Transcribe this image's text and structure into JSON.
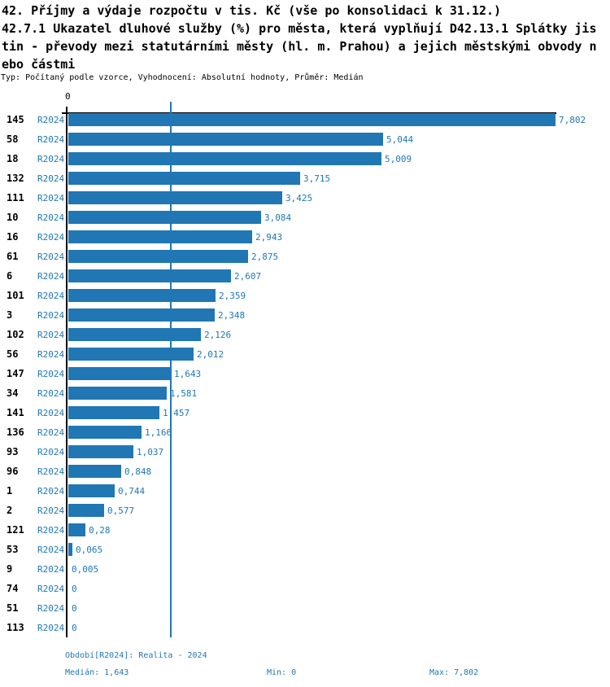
{
  "header": {
    "title_lines": [
      "42. Příjmy a výdaje rozpočtu v tis. Kč (vše po konsolidaci k 31.12.)",
      "42.7.1 Ukazatel dluhové služby (%) pro města, která vyplňují D42.13.1 Splátky jis",
      "tin - převody mezi statutárními městy (hl. m. Prahou) a jejich městskými obvody n",
      "ebo částmi"
    ],
    "meta": "Typ: Počítaný podle vzorce, Vyhodnocení: Absolutní hodnoty, Průměr: Medián"
  },
  "chart_data": {
    "type": "bar",
    "orientation": "horizontal",
    "title": "42. Příjmy a výdaje rozpočtu v tis. Kč (vše po konsolidaci k 31.12.)",
    "subtitle": "42.7.1 Ukazatel dluhové služby (%) pro města, která vyplňují D42.13.1 Splátky jistin - převody mezi statutárními městy (hl. m. Prahou) a jejich městskými obvody nebo částmi",
    "note": "Typ: Počítaný podle vzorce, Vyhodnocení: Absolutní hodnoty, Průměr: Medián",
    "categories": [
      "145",
      "58",
      "18",
      "132",
      "111",
      "10",
      "16",
      "61",
      "6",
      "101",
      "3",
      "102",
      "56",
      "147",
      "34",
      "141",
      "136",
      "93",
      "96",
      "1",
      "2",
      "121",
      "53",
      "9",
      "74",
      "51",
      "113"
    ],
    "series": [
      {
        "name": "R2024",
        "values": [
          7.802,
          5.044,
          5.009,
          3.715,
          3.425,
          3.084,
          2.943,
          2.875,
          2.607,
          2.359,
          2.348,
          2.126,
          2.012,
          1.643,
          1.581,
          1.457,
          1.166,
          1.037,
          0.848,
          0.744,
          0.577,
          0.28,
          0.065,
          0.005,
          0,
          0,
          0
        ]
      }
    ],
    "value_labels": [
      "7,802",
      "5,044",
      "5,009",
      "3,715",
      "3,425",
      "3,084",
      "2,943",
      "2,875",
      "2,607",
      "2,359",
      "2,348",
      "2,126",
      "2,012",
      "1,643",
      "1,581",
      "1,457",
      "1,166",
      "1,037",
      "0,848",
      "0,744",
      "0,577",
      "0,28",
      "0,065",
      "0,005",
      "0",
      "0",
      "0"
    ],
    "xlim": [
      0,
      7.802
    ],
    "x_axis_zero_label": "0",
    "median": 1.643,
    "grid": false,
    "legend_position": "none",
    "bar_color": "#2077b4",
    "text_color": "#1f77b4"
  },
  "footer": {
    "period": "Období[R2024]: Realita - 2024",
    "median_label": "Medián: 1,643",
    "min_label": "Min: 0",
    "max_label": "Max: 7,802"
  }
}
